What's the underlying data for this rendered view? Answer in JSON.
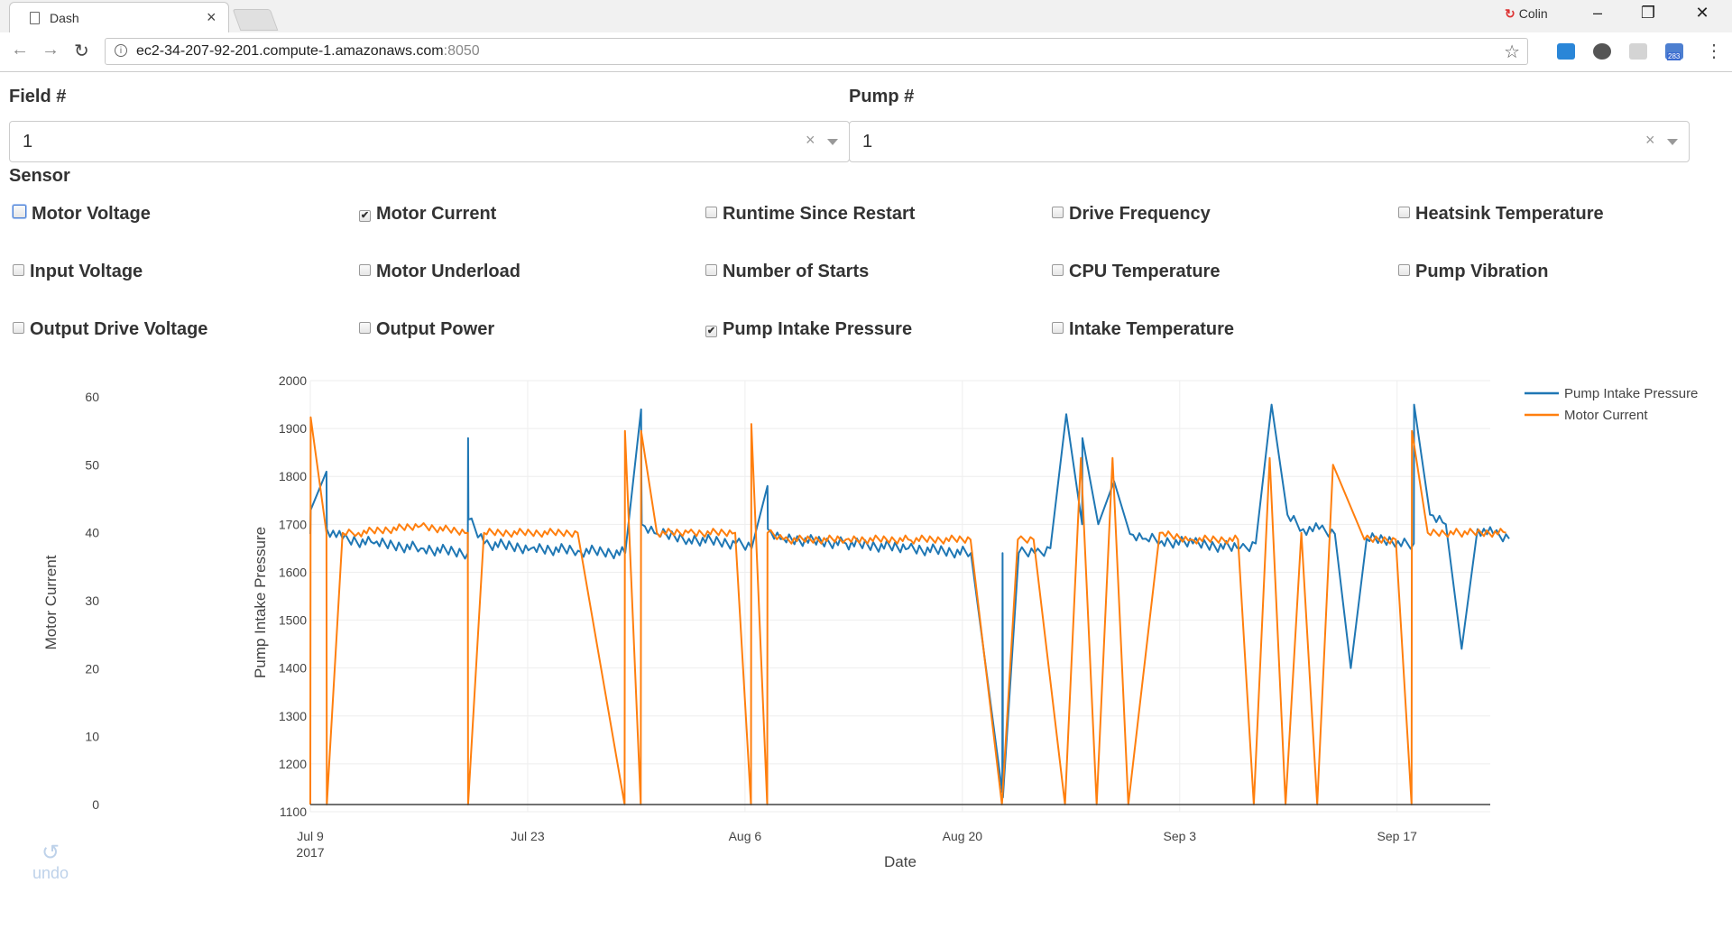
{
  "browser": {
    "tab_title": "Dash",
    "tab_close": "×",
    "profile_name": "Colin",
    "url_host": "ec2-34-207-92-201.compute-1.amazonaws.com",
    "url_port": ":8050",
    "ext_badge": "283",
    "icons": [
      "page-icon",
      "back-icon",
      "forward-icon",
      "reload-icon",
      "info-icon",
      "star-icon",
      "menu-icon"
    ]
  },
  "app": {
    "field_label": "Field #",
    "field_value": "1",
    "pump_label": "Pump #",
    "pump_value": "1",
    "clear_glyph": "×",
    "sensor_label": "Sensor",
    "sensors": [
      {
        "label": "Motor Voltage",
        "checked": false
      },
      {
        "label": "Motor Current",
        "checked": true
      },
      {
        "label": "Runtime Since Restart",
        "checked": false
      },
      {
        "label": "Drive Frequency",
        "checked": false
      },
      {
        "label": "Heatsink Temperature",
        "checked": false
      },
      {
        "label": "Input Voltage",
        "checked": false
      },
      {
        "label": "Motor Underload",
        "checked": false
      },
      {
        "label": "Number of Starts",
        "checked": false
      },
      {
        "label": "CPU Temperature",
        "checked": false
      },
      {
        "label": "Pump Vibration",
        "checked": false
      },
      {
        "label": "Output Drive Voltage",
        "checked": false
      },
      {
        "label": "Output Power",
        "checked": false
      },
      {
        "label": "Pump Intake Pressure",
        "checked": true
      },
      {
        "label": "Intake Temperature",
        "checked": false
      }
    ],
    "undo_label": "undo"
  },
  "colors": {
    "pressure": "#1f77b4",
    "current": "#ff7f0e",
    "grid": "#eeeeee",
    "axis_text": "#444444"
  },
  "chart_data": {
    "type": "line",
    "xlabel": "Date",
    "ylabel": "Pump Intake Pressure",
    "y2label": "Motor Current",
    "x_ticks": [
      "Jul 9",
      "Jul 23",
      "Aug 6",
      "Aug 20",
      "Sep 3",
      "Sep 17"
    ],
    "x_tick_sub": "2017",
    "xlim": [
      "2017-07-09",
      "2017-09-23"
    ],
    "ylim": [
      1100,
      2000
    ],
    "y_ticks": [
      1100,
      1200,
      1300,
      1400,
      1500,
      1600,
      1700,
      1800,
      1900,
      2000
    ],
    "y2lim": [
      0,
      60
    ],
    "y2_ticks": [
      0,
      10,
      20,
      30,
      40,
      50,
      60
    ],
    "legend_position": "top-right",
    "series": [
      {
        "name": "Pump Intake Pressure",
        "axis": "left",
        "x": [
          "2017-07-09",
          "2017-07-09",
          "2017-07-10",
          "2017-07-10",
          "2017-07-11",
          "2017-07-13",
          "2017-07-16",
          "2017-07-19",
          "2017-07-19",
          "2017-07-19",
          "2017-07-20",
          "2017-07-23",
          "2017-07-26",
          "2017-07-29",
          "2017-07-29",
          "2017-07-30",
          "2017-07-30",
          "2017-07-30",
          "2017-07-31",
          "2017-08-02",
          "2017-08-05",
          "2017-08-06",
          "2017-08-07",
          "2017-08-07",
          "2017-08-08",
          "2017-08-12",
          "2017-08-16",
          "2017-08-20",
          "2017-08-22",
          "2017-08-22",
          "2017-08-22",
          "2017-08-23",
          "2017-08-24",
          "2017-08-25",
          "2017-08-26",
          "2017-08-27",
          "2017-08-27",
          "2017-08-28",
          "2017-08-29",
          "2017-08-30",
          "2017-08-31",
          "2017-09-01",
          "2017-09-03",
          "2017-09-06",
          "2017-09-07",
          "2017-09-08",
          "2017-09-09",
          "2017-09-10",
          "2017-09-11",
          "2017-09-12",
          "2017-09-13",
          "2017-09-14",
          "2017-09-16",
          "2017-09-17",
          "2017-09-17",
          "2017-09-18",
          "2017-09-19",
          "2017-09-20",
          "2017-09-21",
          "2017-09-22",
          "2017-09-23"
        ],
        "y": [
          1680,
          1730,
          1810,
          1690,
          1670,
          1660,
          1650,
          1640,
          1880,
          1710,
          1660,
          1650,
          1645,
          1640,
          1640,
          1940,
          1800,
          1700,
          1680,
          1670,
          1660,
          1650,
          1780,
          1690,
          1670,
          1660,
          1650,
          1640,
          1140,
          1640,
          1130,
          1640,
          1640,
          1650,
          1930,
          1700,
          1880,
          1700,
          1790,
          1680,
          1670,
          1665,
          1660,
          1650,
          1660,
          1950,
          1720,
          1690,
          1690,
          1680,
          1400,
          1670,
          1665,
          1660,
          1950,
          1720,
          1700,
          1440,
          1690,
          1680,
          1670
        ]
      },
      {
        "name": "Motor Current",
        "axis": "right",
        "x": [
          "2017-07-09",
          "2017-07-09",
          "2017-07-10",
          "2017-07-10",
          "2017-07-11",
          "2017-07-12",
          "2017-07-16",
          "2017-07-19",
          "2017-07-19",
          "2017-07-20",
          "2017-07-23",
          "2017-07-26",
          "2017-07-29",
          "2017-07-29",
          "2017-07-30",
          "2017-07-30",
          "2017-07-31",
          "2017-08-02",
          "2017-08-05",
          "2017-08-06",
          "2017-08-06",
          "2017-08-07",
          "2017-08-07",
          "2017-08-08",
          "2017-08-12",
          "2017-08-16",
          "2017-08-20",
          "2017-08-22",
          "2017-08-23",
          "2017-08-24",
          "2017-08-26",
          "2017-08-27",
          "2017-08-28",
          "2017-08-29",
          "2017-08-30",
          "2017-09-01",
          "2017-09-03",
          "2017-09-06",
          "2017-09-07",
          "2017-09-08",
          "2017-09-09",
          "2017-09-10",
          "2017-09-11",
          "2017-09-12",
          "2017-09-14",
          "2017-09-16",
          "2017-09-17",
          "2017-09-17",
          "2017-09-18",
          "2017-09-20",
          "2017-09-23"
        ],
        "y": [
          0,
          57,
          40,
          0,
          40,
          40,
          41,
          40,
          0,
          40,
          40,
          40,
          0,
          55,
          0,
          55,
          40,
          40,
          40,
          0,
          56,
          0,
          40,
          39,
          39,
          39,
          39,
          0,
          39,
          39,
          0,
          51,
          0,
          51,
          0,
          40,
          39,
          39,
          0,
          51,
          0,
          40,
          0,
          50,
          39,
          39,
          0,
          55,
          40,
          40,
          40
        ]
      }
    ]
  }
}
